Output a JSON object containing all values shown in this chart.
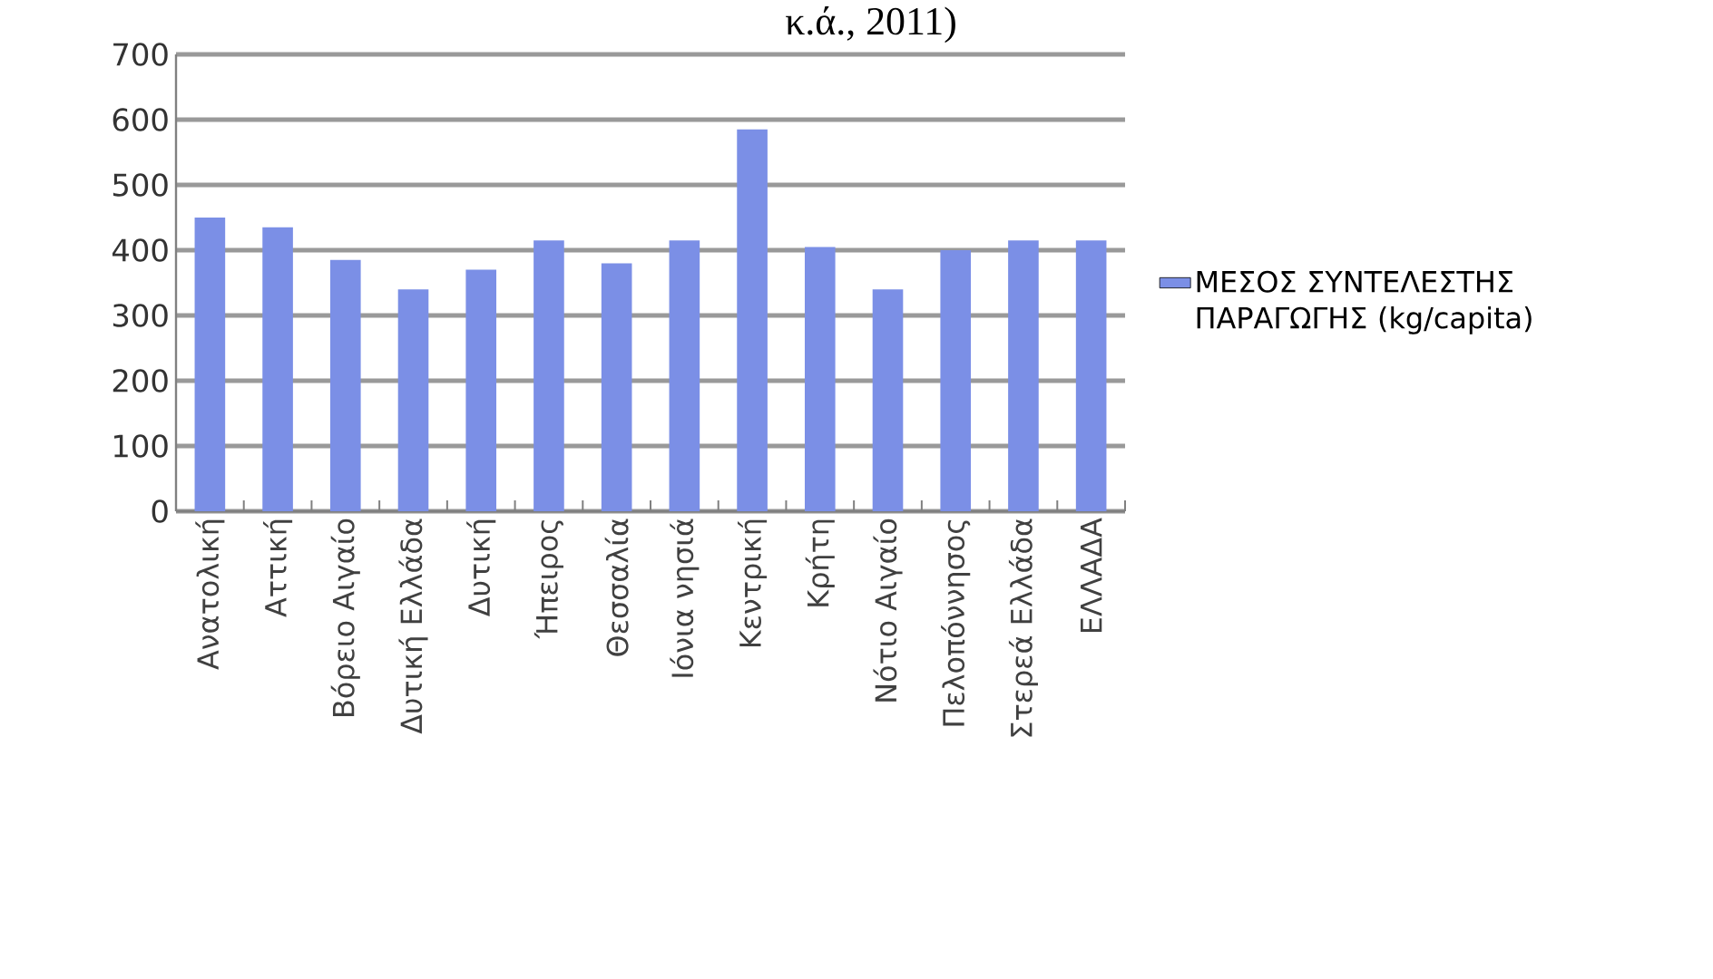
{
  "chart_data": {
    "type": "bar",
    "title": "κ.ά., 2011)",
    "categories": [
      "Ανατολική",
      "Αττική",
      "Βόρειο Αιγαίο",
      "Δυτική Ελλάδα",
      "Δυτική",
      "Ήπειρος",
      "Θεσσαλία",
      "Ιόνια νησιά",
      "Κεντρική",
      "Κρήτη",
      "Νότιο Αιγαίο",
      "Πελοπόννησος",
      "Στερεά Ελλάδα",
      "ΕΛΛΑΔΑ"
    ],
    "series": [
      {
        "name": "ΜΕΣΟΣ ΣΥΝΤΕΛΕΣΤΗΣ ΠΑΡΑΓΩΓΗΣ (kg/capita)",
        "color": "#7b8fe6",
        "values": [
          450,
          435,
          385,
          340,
          370,
          415,
          380,
          415,
          585,
          405,
          340,
          400,
          415,
          415
        ]
      }
    ],
    "ylim": [
      0,
      700
    ],
    "yticks": [
      0,
      100,
      200,
      300,
      400,
      500,
      600,
      700
    ],
    "grid": "y",
    "legend": "right"
  }
}
